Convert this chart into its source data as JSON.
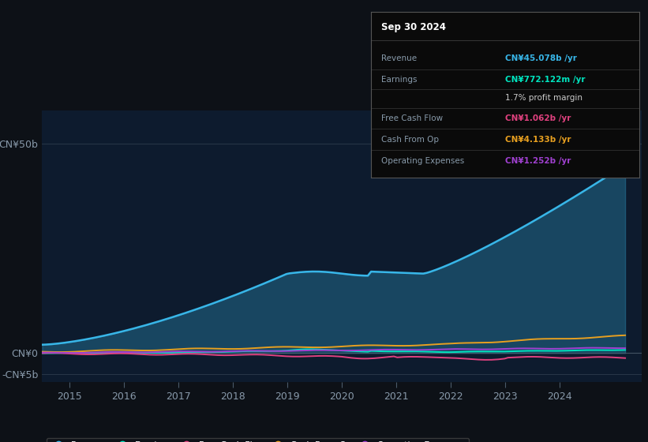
{
  "background_color": "#0d1117",
  "plot_bg_color": "#0d1b2e",
  "ylim": [
    -7000000000.0,
    58000000000.0
  ],
  "ytick_labels": [
    "-CN¥5b",
    "CN¥0",
    "CN¥50b"
  ],
  "xticks": [
    2015,
    2016,
    2017,
    2018,
    2019,
    2020,
    2021,
    2022,
    2023,
    2024
  ],
  "colors": {
    "revenue": "#38b6e8",
    "earnings": "#00e5c0",
    "free_cash_flow": "#e0417f",
    "cash_from_op": "#e8a020",
    "operating_expenses": "#a040d0"
  },
  "info_box_title": "Sep 30 2024",
  "info_rows": [
    {
      "label": "Revenue",
      "value": "CN¥45.078b /yr",
      "color": "#38b6e8"
    },
    {
      "label": "Earnings",
      "value": "CN¥772.122m /yr",
      "color": "#00e5c0"
    },
    {
      "label": "",
      "value": "1.7% profit margin",
      "color": "#cccccc"
    },
    {
      "label": "Free Cash Flow",
      "value": "CN¥1.062b /yr",
      "color": "#e0417f"
    },
    {
      "label": "Cash From Op",
      "value": "CN¥4.133b /yr",
      "color": "#e8a020"
    },
    {
      "label": "Operating Expenses",
      "value": "CN¥1.252b /yr",
      "color": "#a040d0"
    }
  ],
  "legend_labels": [
    "Revenue",
    "Earnings",
    "Free Cash Flow",
    "Cash From Op",
    "Operating Expenses"
  ]
}
